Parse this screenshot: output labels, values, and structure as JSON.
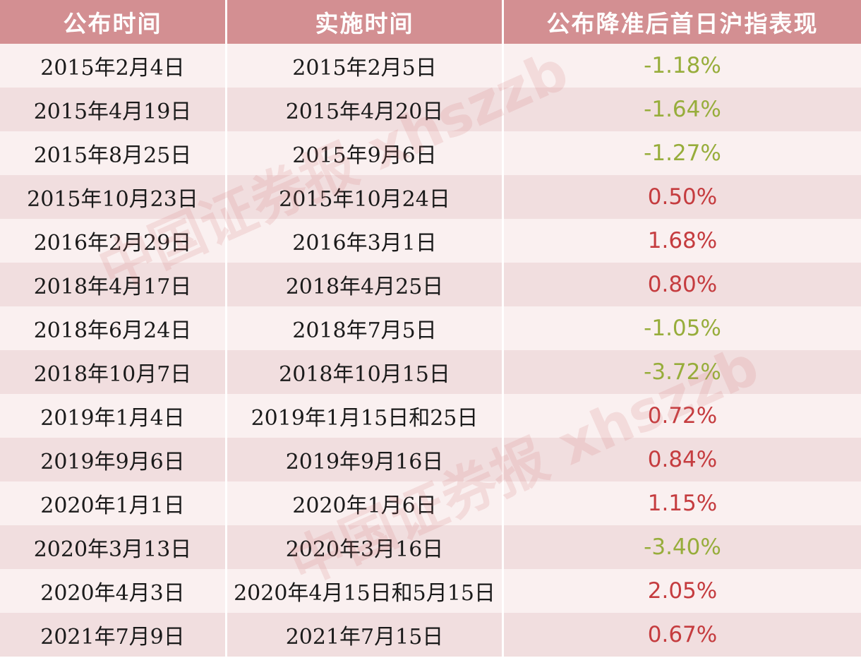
{
  "header": {
    "publish_date": "公布时间",
    "effective_date": "实施时间",
    "performance": "公布降准后首日沪指表现"
  },
  "rows": [
    {
      "publish": "2015年2月4日",
      "effective": "2015年2月5日",
      "change": "-1.18%"
    },
    {
      "publish": "2015年4月19日",
      "effective": "2015年4月20日",
      "change": "-1.64%"
    },
    {
      "publish": "2015年8月25日",
      "effective": "2015年9月6日",
      "change": "-1.27%"
    },
    {
      "publish": "2015年10月23日",
      "effective": "2015年10月24日",
      "change": "0.50%"
    },
    {
      "publish": "2016年2月29日",
      "effective": "2016年3月1日",
      "change": "1.68%"
    },
    {
      "publish": "2018年4月17日",
      "effective": "2018年4月25日",
      "change": "0.80%"
    },
    {
      "publish": "2018年6月24日",
      "effective": "2018年7月5日",
      "change": "-1.05%"
    },
    {
      "publish": "2018年10月7日",
      "effective": "2018年10月15日",
      "change": "-3.72%"
    },
    {
      "publish": "2019年1月4日",
      "effective": "2019年1月15日和25日",
      "change": "0.72%"
    },
    {
      "publish": "2019年9月6日",
      "effective": "2019年9月16日",
      "change": "0.84%"
    },
    {
      "publish": "2020年1月1日",
      "effective": "2020年1月6日",
      "change": "1.15%"
    },
    {
      "publish": "2020年3月13日",
      "effective": "2020年3月16日",
      "change": "-3.40%"
    },
    {
      "publish": "2020年4月3日",
      "effective": "2020年4月15日和5月15日",
      "change": "2.05%"
    },
    {
      "publish": "2021年7月9日",
      "effective": "2021年7月15日",
      "change": "0.67%"
    }
  ],
  "watermarks": [
    "中国证券报 xhszzb",
    "中国证券报 xhszzb"
  ],
  "colors": {
    "header_bg": "#d38f92",
    "row_light": "#faf0f0",
    "row_dark": "#f1dedf",
    "negative": "#97ad3b",
    "positive": "#c53c3f"
  }
}
